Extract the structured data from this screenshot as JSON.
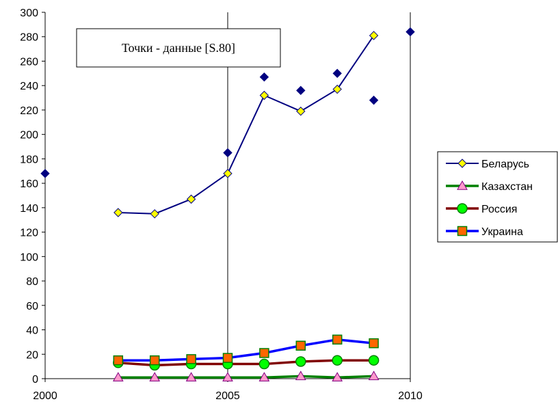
{
  "chart_data": {
    "type": "line",
    "title": "",
    "xlabel": "",
    "ylabel": "",
    "xlim": [
      2000,
      2010
    ],
    "ylim": [
      0,
      300
    ],
    "x_ticks": [
      2000,
      2005,
      2010
    ],
    "y_ticks": [
      0,
      20,
      40,
      60,
      80,
      100,
      120,
      140,
      160,
      180,
      200,
      220,
      240,
      260,
      280,
      300
    ],
    "grid": "vertical lines at 2000, 2005, 2010",
    "legend_position": "right",
    "annotation": "Точки - данные [S.80]",
    "series": [
      {
        "name": "Беларусь",
        "color": "#000080",
        "marker": "diamond",
        "marker_fill": "#ffff00",
        "x": [
          2002,
          2003,
          2004,
          2005,
          2006,
          2007,
          2008,
          2009
        ],
        "y": [
          136,
          135,
          147,
          168,
          232,
          219,
          237,
          281
        ]
      },
      {
        "name": "Казахстан",
        "color": "#008000",
        "marker": "triangle",
        "marker_fill": "#ff99cc",
        "x": [
          2002,
          2003,
          2004,
          2005,
          2006,
          2007,
          2008,
          2009
        ],
        "y": [
          1,
          1,
          1,
          1,
          1,
          2,
          1,
          2
        ]
      },
      {
        "name": "Россия",
        "color": "#800000",
        "marker": "circle",
        "marker_fill": "#00ff00",
        "x": [
          2002,
          2003,
          2004,
          2005,
          2006,
          2007,
          2008,
          2009
        ],
        "y": [
          13,
          11,
          12,
          12,
          12,
          14,
          15,
          15
        ]
      },
      {
        "name": "Украина",
        "color": "#0000ff",
        "marker": "square",
        "marker_fill": "#ff6600",
        "x": [
          2002,
          2003,
          2004,
          2005,
          2006,
          2007,
          2008,
          2009
        ],
        "y": [
          15,
          15,
          16,
          17,
          21,
          27,
          32,
          29
        ]
      }
    ],
    "data_points": {
      "color": "#000080",
      "marker": "diamond",
      "x": [
        2000,
        2005,
        2006,
        2007,
        2008,
        2009,
        2010
      ],
      "y": [
        168,
        185,
        247,
        236,
        250,
        228,
        284
      ]
    }
  }
}
